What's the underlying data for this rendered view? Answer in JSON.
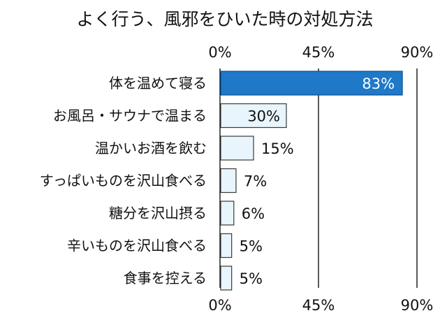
{
  "chart_data": {
    "type": "bar",
    "orientation": "horizontal",
    "title": "よく行う、風邪をひいた時の対処方法",
    "categories": [
      "体を温めて寝る",
      "お風呂・サウナで温まる",
      "温かいお酒を飲む",
      "すっぱいものを沢山食べる",
      "糖分を沢山摂る",
      "辛いものを沢山食べる",
      "食事を控える"
    ],
    "values": [
      83,
      30,
      15,
      7,
      6,
      5,
      5
    ],
    "value_labels": [
      "83%",
      "30%",
      "15%",
      "7%",
      "6%",
      "5%",
      "5%"
    ],
    "xlim": [
      0,
      90
    ],
    "ticks": [
      0,
      45,
      90
    ],
    "tick_labels": [
      "0%",
      "45%",
      "90%"
    ],
    "tick_labels_top": true,
    "tick_labels_bottom": true,
    "grid": true,
    "colors": {
      "highlight_fill": "#1f78c8",
      "highlight_stroke": "#0b4f8f",
      "bar_fill": "#e8f5fc",
      "bar_stroke": "#3a3a3a",
      "grid": "#000000",
      "label_on_bar": "#ffffff",
      "label": "#111111"
    }
  }
}
